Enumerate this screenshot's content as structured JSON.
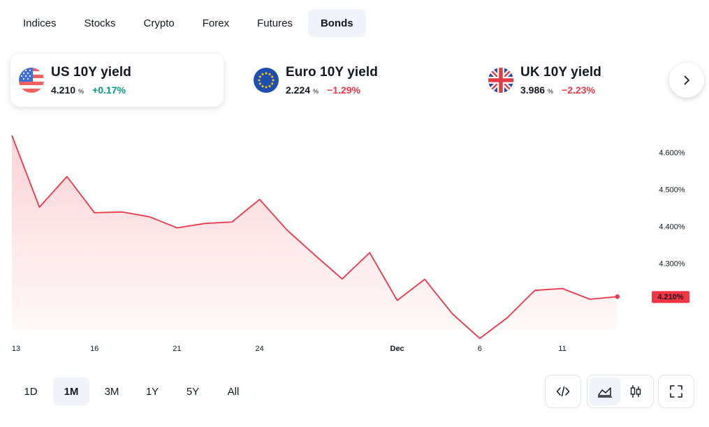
{
  "tabs": [
    {
      "label": "Indices",
      "active": false
    },
    {
      "label": "Stocks",
      "active": false
    },
    {
      "label": "Crypto",
      "active": false
    },
    {
      "label": "Forex",
      "active": false
    },
    {
      "label": "Futures",
      "active": false
    },
    {
      "label": "Bonds",
      "active": true
    }
  ],
  "cards": [
    {
      "name": "US 10Y yield",
      "price": "4.210",
      "unit": "%",
      "change": "+0.17%",
      "direction": "up",
      "flag": "us-flag-icon",
      "active": true
    },
    {
      "name": "Euro 10Y yield",
      "price": "2.224",
      "unit": "%",
      "change": "−1.29%",
      "direction": "down",
      "flag": "eu-flag-icon",
      "active": false
    },
    {
      "name": "UK 10Y yield",
      "price": "3.986",
      "unit": "%",
      "change": "−2.23%",
      "direction": "down",
      "flag": "uk-flag-icon",
      "active": false
    }
  ],
  "next_icon": "chevron-right-icon",
  "colors": {
    "line": "#f23645",
    "positive": "#089981",
    "negative": "#f23645",
    "active_bg": "#f0f3fa"
  },
  "chart_data": {
    "type": "area",
    "series": [
      {
        "values": [
          4.646,
          4.452,
          4.535,
          4.437,
          4.439,
          4.426,
          4.396,
          4.408,
          4.412,
          4.473,
          4.39,
          4.323,
          4.258,
          4.329,
          4.2,
          4.257,
          4.164,
          4.097,
          4.153,
          4.227,
          4.232,
          4.203,
          4.21
        ]
      }
    ],
    "x_ticks": [
      {
        "label": "13",
        "index": 0
      },
      {
        "label": "16",
        "index": 3
      },
      {
        "label": "21",
        "index": 6
      },
      {
        "label": "24",
        "index": 9
      },
      {
        "label": "Dec",
        "index": 14
      },
      {
        "label": "6",
        "index": 17
      },
      {
        "label": "11",
        "index": 20
      }
    ],
    "y_ticks": [
      4.6,
      4.5,
      4.4,
      4.3
    ],
    "y_tick_labels": [
      "4.600%",
      "4.500%",
      "4.400%",
      "4.300%"
    ],
    "ylim": [
      4.07,
      4.68
    ],
    "last_value_label": "4.210%",
    "grid": false
  },
  "ranges": [
    {
      "label": "1D",
      "active": false
    },
    {
      "label": "1M",
      "active": true
    },
    {
      "label": "3M",
      "active": false
    },
    {
      "label": "1Y",
      "active": false
    },
    {
      "label": "5Y",
      "active": false
    },
    {
      "label": "All",
      "active": false
    }
  ],
  "tools": {
    "embed": "code-embed-icon",
    "area": "area-chart-icon",
    "candles": "candlestick-chart-icon",
    "fullscreen": "fullscreen-icon"
  }
}
